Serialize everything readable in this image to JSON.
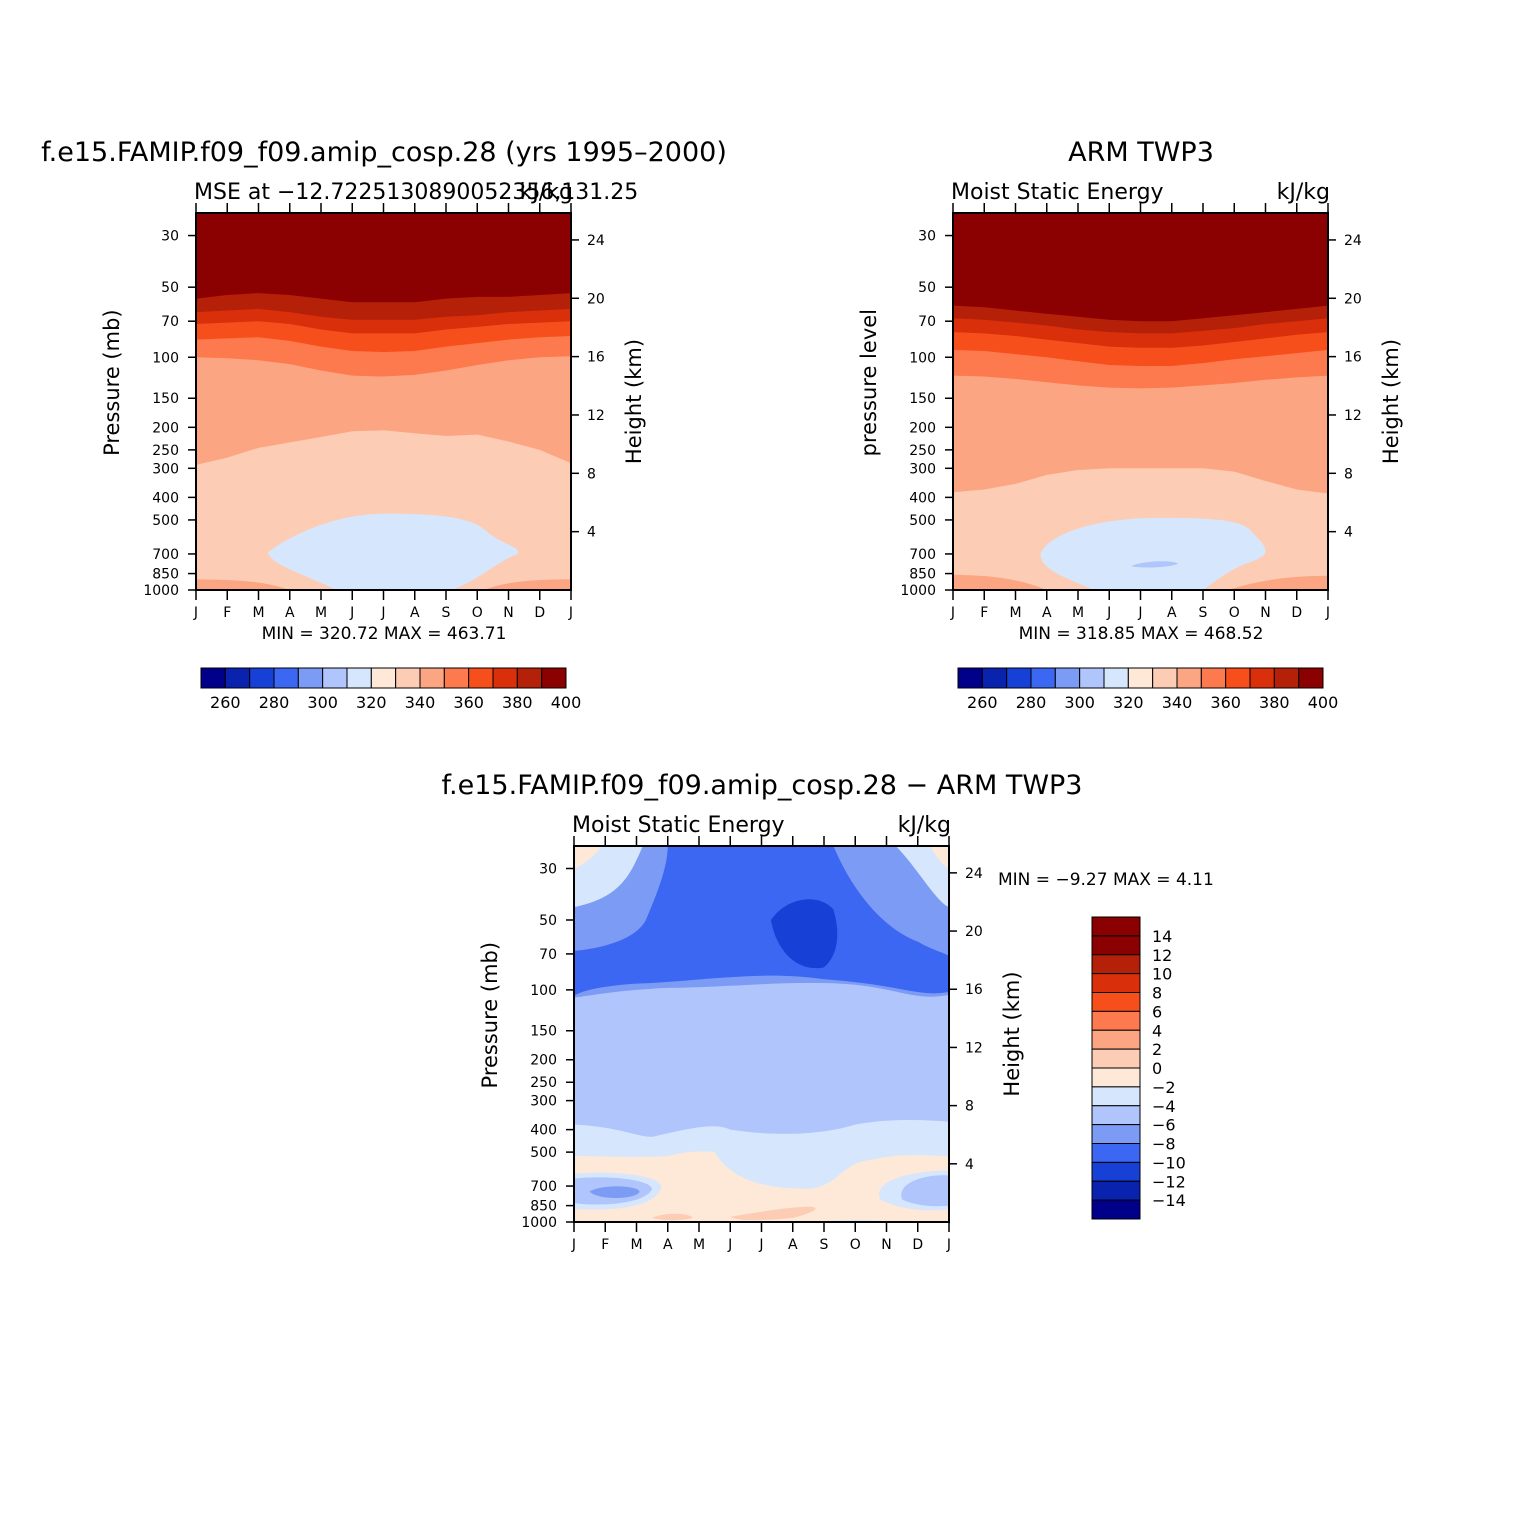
{
  "chart_data": [
    {
      "type": "heatmap",
      "panel": "model",
      "title": "f.e15.FAMIP.f09_f09.amip_cosp.28 (yrs 1995–2000)",
      "left_subtitle": "MSE at −12.7225130890052356,131.25",
      "right_subtitle": "kJ/kg",
      "ylabel": "Pressure (mb)",
      "ylabel_right": "Height (km)",
      "x_ticks": [
        "J",
        "F",
        "M",
        "A",
        "M",
        "J",
        "J",
        "A",
        "S",
        "O",
        "N",
        "D",
        "J"
      ],
      "y_ticks": [
        "30",
        "50",
        "70",
        "100",
        "150",
        "200",
        "250",
        "300",
        "400",
        "500",
        "700",
        "850",
        "1000"
      ],
      "y_ticks_right": [
        "24",
        "20",
        "16",
        "12",
        "8",
        "4"
      ],
      "min_max_text": "MIN = 320.72 MAX = 463.71",
      "min": 320.72,
      "max": 463.71,
      "colorbar_labels": [
        "260",
        "280",
        "300",
        "320",
        "340",
        "360",
        "380",
        "400"
      ]
    },
    {
      "type": "heatmap",
      "panel": "observations",
      "title": "ARM TWP3",
      "left_subtitle": "Moist Static Energy",
      "right_subtitle": "kJ/kg",
      "ylabel": "pressure level",
      "ylabel_right": "Height (km)",
      "x_ticks": [
        "J",
        "F",
        "M",
        "A",
        "M",
        "J",
        "J",
        "A",
        "S",
        "O",
        "N",
        "D",
        "J"
      ],
      "y_ticks": [
        "30",
        "50",
        "70",
        "100",
        "150",
        "200",
        "250",
        "300",
        "400",
        "500",
        "700",
        "850",
        "1000"
      ],
      "y_ticks_right": [
        "24",
        "20",
        "16",
        "12",
        "8",
        "4"
      ],
      "min_max_text": "MIN = 318.85 MAX = 468.52",
      "min": 318.85,
      "max": 468.52,
      "colorbar_labels": [
        "260",
        "280",
        "300",
        "320",
        "340",
        "360",
        "380",
        "400"
      ]
    },
    {
      "type": "heatmap",
      "panel": "difference",
      "title": "f.e15.FAMIP.f09_f09.amip_cosp.28 − ARM TWP3",
      "left_subtitle": "Moist Static Energy",
      "right_subtitle": "kJ/kg",
      "ylabel": "Pressure (mb)",
      "ylabel_right": "Height (km)",
      "x_ticks": [
        "J",
        "F",
        "M",
        "A",
        "M",
        "J",
        "J",
        "A",
        "S",
        "O",
        "N",
        "D",
        "J"
      ],
      "y_ticks": [
        "30",
        "50",
        "70",
        "100",
        "150",
        "200",
        "250",
        "300",
        "400",
        "500",
        "700",
        "850",
        "1000"
      ],
      "y_ticks_right": [
        "24",
        "20",
        "16",
        "12",
        "8",
        "4"
      ],
      "min_max_text": "MIN =   −9.27 MAX =    4.11",
      "min": -9.27,
      "max": 4.11,
      "colorbar_labels": [
        "14",
        "12",
        "10",
        "8",
        "6",
        "4",
        "2",
        "0",
        "−2",
        "−4",
        "−6",
        "−8",
        "−10",
        "−12",
        "−14"
      ]
    }
  ],
  "colors": {
    "scale": [
      "#00008b",
      "#0a23ae",
      "#1741d6",
      "#3b67f2",
      "#7c9bf4",
      "#b0c5fb",
      "#d6e7fd",
      "#fee8d8",
      "#fdccb4",
      "#fca582",
      "#fc7a4e",
      "#f74f1c",
      "#d92f0b",
      "#b52008",
      "#8b0000"
    ]
  }
}
